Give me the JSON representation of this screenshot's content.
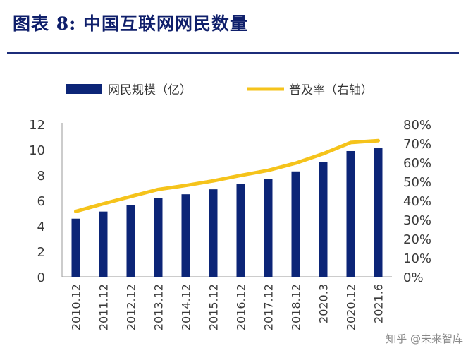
{
  "title": "图表 8: 中国互联网网民数量",
  "watermark": "知乎 @未来智库",
  "colors": {
    "bar": "#0c2577",
    "line": "#f5c31b",
    "axis_text": "#3a3a3a",
    "title": "#0f1f6b"
  },
  "chart_data": {
    "type": "bar",
    "categories": [
      "2010.12",
      "2011.12",
      "2012.12",
      "2013.12",
      "2014.12",
      "2015.12",
      "2016.12",
      "2017.12",
      "2018.12",
      "2020.3",
      "2020.12",
      "2021.6"
    ],
    "series": [
      {
        "name": "网民规模（亿）",
        "type": "bar",
        "axis": "left",
        "values": [
          4.57,
          5.13,
          5.64,
          6.18,
          6.49,
          6.88,
          7.31,
          7.72,
          8.29,
          9.04,
          9.89,
          10.11
        ]
      },
      {
        "name": "普及率（右轴）",
        "type": "line",
        "axis": "right",
        "values": [
          0.343,
          0.383,
          0.421,
          0.458,
          0.479,
          0.503,
          0.532,
          0.558,
          0.596,
          0.645,
          0.704,
          0.714
        ]
      }
    ],
    "ylim": [
      0,
      12
    ],
    "yticks": [
      0,
      2,
      4,
      6,
      8,
      10,
      12
    ],
    "y2lim": [
      0,
      0.8
    ],
    "y2ticks": [
      "0%",
      "10%",
      "20%",
      "30%",
      "40%",
      "50%",
      "60%",
      "70%",
      "80%"
    ],
    "legend": "top",
    "grid": false
  }
}
